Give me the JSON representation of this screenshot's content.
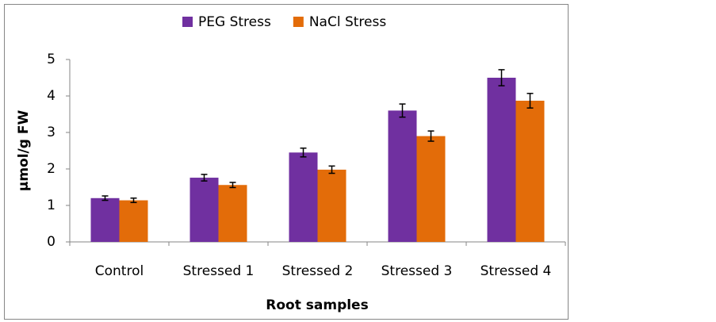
{
  "chart_data": {
    "type": "bar",
    "categories": [
      "Control",
      "Stressed 1",
      "Stressed 2",
      "Stressed 3",
      "Stressed 4"
    ],
    "series": [
      {
        "name": "PEG Stress",
        "color": "#7030a0",
        "values": [
          1.2,
          1.76,
          2.45,
          3.6,
          4.5
        ],
        "errors": [
          0.06,
          0.09,
          0.12,
          0.18,
          0.22
        ]
      },
      {
        "name": "NaCl Stress",
        "color": "#e36c09",
        "values": [
          1.14,
          1.56,
          1.98,
          2.9,
          3.87
        ],
        "errors": [
          0.06,
          0.07,
          0.1,
          0.14,
          0.2
        ]
      }
    ],
    "ylim": [
      0,
      5
    ],
    "yticks": [
      0,
      1,
      2,
      3,
      4,
      5
    ],
    "y_label": "µmol/g FW",
    "x_label": "Root samples",
    "legend": "top",
    "grid": false
  }
}
